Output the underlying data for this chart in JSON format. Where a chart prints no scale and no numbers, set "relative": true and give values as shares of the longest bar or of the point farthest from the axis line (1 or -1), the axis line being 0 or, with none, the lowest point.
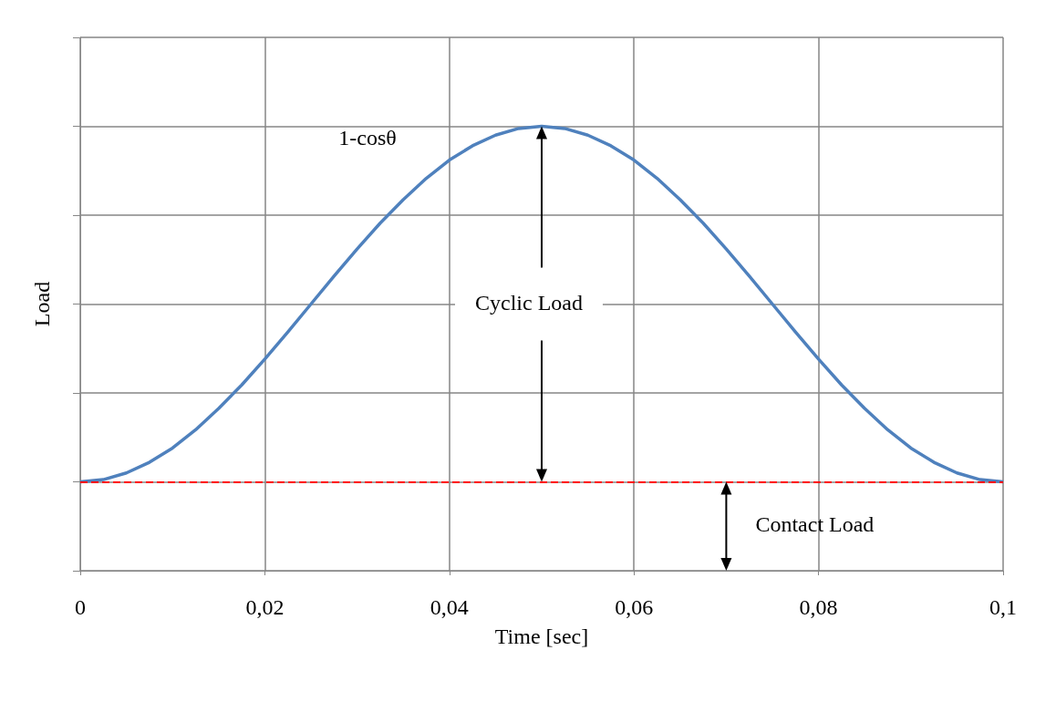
{
  "chart_data": {
    "type": "line",
    "xlabel": "Time [sec]",
    "ylabel": "Load",
    "relative": true,
    "grid": true,
    "marker": "none",
    "line_style": "solid",
    "x": [
      0,
      0.0025,
      0.005,
      0.0075,
      0.01,
      0.0125,
      0.015,
      0.0175,
      0.02,
      0.0225,
      0.025,
      0.0275,
      0.03,
      0.0325,
      0.035,
      0.0375,
      0.04,
      0.0425,
      0.045,
      0.0475,
      0.05,
      0.0525,
      0.055,
      0.0575,
      0.06,
      0.0625,
      0.065,
      0.0675,
      0.07,
      0.0725,
      0.075,
      0.0775,
      0.08,
      0.0825,
      0.085,
      0.0875,
      0.09,
      0.0925,
      0.095,
      0.0975,
      0.1
    ],
    "xlim": [
      0,
      0.1
    ],
    "xticks": [
      0,
      {
        "value": 0.02,
        "label": "0,02"
      },
      {
        "value": 0.04,
        "label": "0,04"
      },
      {
        "value": 0.06,
        "label": "0,06"
      },
      {
        "value": 0.08,
        "label": "0,08"
      },
      {
        "value": 0.1,
        "label": "0,1"
      }
    ],
    "series": [
      {
        "color": "#4f81bd",
        "values": [
          0.2,
          0.205,
          0.22,
          0.244,
          0.276,
          0.317,
          0.365,
          0.418,
          0.476,
          0.537,
          0.6,
          0.663,
          0.724,
          0.782,
          0.835,
          0.883,
          0.924,
          0.956,
          0.98,
          0.995,
          1,
          0.995,
          0.98,
          0.956,
          0.924,
          0.883,
          0.835,
          0.782,
          0.724,
          0.663,
          0.6,
          0.537,
          0.476,
          0.418,
          0.365,
          0.317,
          0.276,
          0.244,
          0.22,
          0.205,
          0.2
        ]
      }
    ],
    "ref_lines": [
      {
        "axis": "y",
        "value": 0.2,
        "color": "#ff0000",
        "line_style": "dashed"
      }
    ],
    "annotations": [
      "1-cosθ",
      "Cyclic Load",
      "Contact Load"
    ]
  }
}
